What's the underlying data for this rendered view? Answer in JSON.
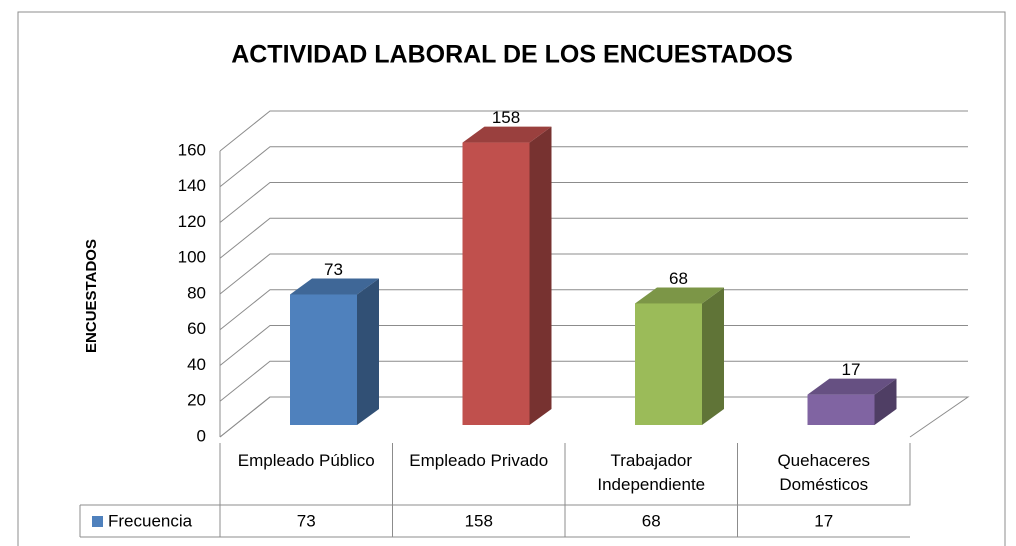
{
  "chart_data": {
    "type": "bar3d",
    "title": "ACTIVIDAD LABORAL DE LOS ENCUESTADOS",
    "y_label": "ENCUESTADOS",
    "categories": [
      "Empleado Público",
      "Empleado Privado",
      "Trabajador Independiente",
      "Quehaceres Domésticos"
    ],
    "series": [
      {
        "name": "Frecuencia",
        "color": "#4f81bd",
        "colors": [
          "#4f81bd",
          "#c0504d",
          "#9bbb59",
          "#8064a2"
        ],
        "values": [
          73,
          158,
          68,
          17
        ]
      }
    ],
    "ylim": [
      0,
      160
    ],
    "yticks": [
      0,
      20,
      40,
      60,
      80,
      100,
      120,
      140,
      160
    ],
    "grid": true,
    "data_table": true
  }
}
